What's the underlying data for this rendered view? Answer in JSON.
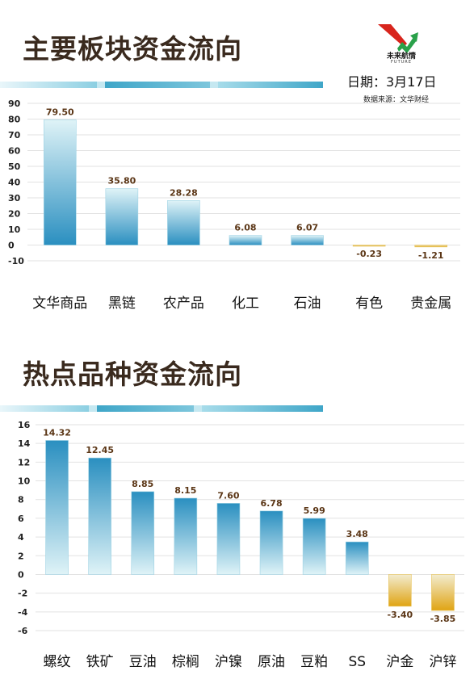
{
  "header": {
    "title": "主要板块资金流向",
    "date_label": "日期：3月17日",
    "source_label": "数据来源：文华财经",
    "logo_text": "未来航情",
    "logo_sub": "FUTURE"
  },
  "section2": {
    "title": "热点品种资金流向"
  },
  "colors": {
    "positive_top": "#dff3f7",
    "positive_bottom": "#2a8fc0",
    "negative_top": "#f2ecd0",
    "negative_bottom": "#e0a414",
    "band_dark": "#3fa6c8",
    "band_light": "#c5e8f1",
    "logo_red": "#d8251d",
    "logo_green": "#2aa14a"
  },
  "chart_data": [
    {
      "type": "bar",
      "categories": [
        "文华商品",
        "黑链",
        "农产品",
        "化工",
        "石油",
        "有色",
        "贵金属"
      ],
      "values": [
        79.5,
        35.8,
        28.28,
        6.08,
        6.07,
        -0.23,
        -1.21
      ],
      "value_labels": [
        "79.50",
        "35.80",
        "28.28",
        "6.08",
        "6.07",
        "-0.23",
        "-1.21"
      ],
      "ylim": [
        -10,
        90
      ],
      "yticks": [
        90,
        80,
        70,
        60,
        50,
        40,
        30,
        20,
        10,
        0,
        -10
      ],
      "grid": true,
      "gradient": "dark-bottom"
    },
    {
      "type": "bar",
      "categories": [
        "螺纹",
        "铁矿",
        "豆油",
        "棕榈",
        "沪镍",
        "原油",
        "豆粕",
        "SS",
        "沪金",
        "沪锌"
      ],
      "values": [
        14.32,
        12.45,
        8.85,
        8.15,
        7.6,
        6.78,
        5.99,
        3.48,
        -3.4,
        -3.85
      ],
      "value_labels": [
        "14.32",
        "12.45",
        "8.85",
        "8.15",
        "7.60",
        "6.78",
        "5.99",
        "3.48",
        "-3.40",
        "-3.85"
      ],
      "ylim": [
        -6,
        16
      ],
      "yticks": [
        16,
        14,
        12,
        10,
        8,
        6,
        4,
        2,
        0,
        -2,
        -4,
        -6
      ],
      "grid": true,
      "gradient": "dark-top"
    }
  ]
}
